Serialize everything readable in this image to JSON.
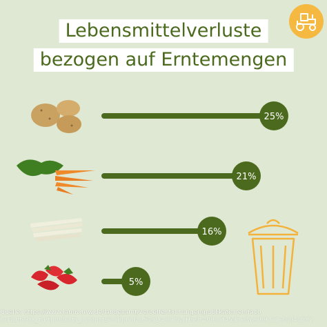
{
  "title": {
    "line1": "Lebensmittelverluste",
    "line2": "bezogen auf Erntemengen"
  },
  "icons": {
    "badge": "tractor-icon",
    "trash": "trash-can-icon",
    "produce": [
      "potato-icon",
      "carrot-icon",
      "asparagus-icon",
      "strawberry-icon"
    ]
  },
  "colors": {
    "background": "#dfe8d3",
    "bar": "#4b6a1e",
    "title_text": "#4b6a1e",
    "accent": "#f5b840"
  },
  "chart_data": {
    "type": "bar",
    "orientation": "horizontal",
    "categories": [
      "",
      "",
      "",
      ""
    ],
    "values": [
      25,
      21,
      16,
      5
    ],
    "value_labels": [
      "25%",
      "21%",
      "16%",
      "5%"
    ],
    "unit": "%",
    "xlim": [
      0,
      25
    ],
    "title": "Lebensmittelverluste bezogen auf Erntemengen",
    "grid": false,
    "legend": "none"
  },
  "source": {
    "line1": "Quelle: https://www.lanuv.nrw.de/landesamt/veroeffentlichungen/publikationen/fach",
    "line2": "berichte?tx_cartproducts_products%5Bproduct%5D=898&cHash=08b5f45dbedae309751eb0f45f0f2"
  }
}
